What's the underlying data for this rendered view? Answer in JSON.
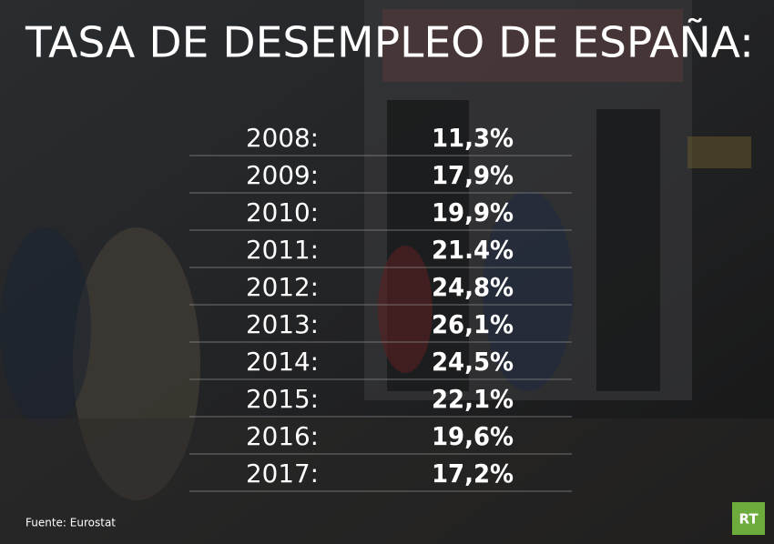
{
  "header": {
    "title": "TASA DE DESEMPLEO DE ESPAÑA:"
  },
  "table": {
    "rows": [
      [
        "2008:",
        "11,3%"
      ],
      [
        "2009:",
        "17,9%"
      ],
      [
        "2010:",
        "19,9%"
      ],
      [
        "2011:",
        "21.4%"
      ],
      [
        "2012:",
        "24,8%"
      ],
      [
        "2013:",
        "26,1%"
      ],
      [
        "2014:",
        "24,5%"
      ],
      [
        "2015:",
        "22,1%"
      ],
      [
        "2016:",
        "19,6%"
      ],
      [
        "2017:",
        "17,2%"
      ]
    ]
  },
  "footer": {
    "source": "Fuente: Eurostat",
    "logo": "RT"
  }
}
